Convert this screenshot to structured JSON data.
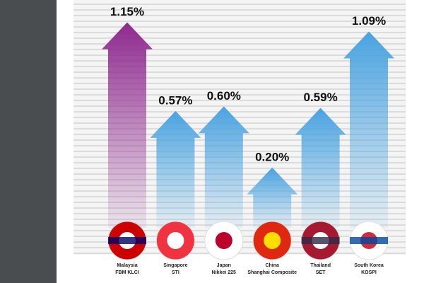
{
  "chart_data": {
    "type": "bar",
    "categories": [
      [
        "Malaysia",
        "FBM KLCI"
      ],
      [
        "Singapore",
        "STI"
      ],
      [
        "Japan",
        "Nikkei 225"
      ],
      [
        "China",
        "Shanghai Composite"
      ],
      [
        "Thailand",
        "SET"
      ],
      [
        "South Korea",
        "KOSPI"
      ]
    ],
    "values": [
      1.15,
      0.57,
      0.6,
      0.2,
      0.59,
      1.09
    ],
    "value_labels": [
      "1.15%",
      "0.57%",
      "0.60%",
      "0.20%",
      "0.59%",
      "1.09%"
    ],
    "colors": [
      "#8e2a8e",
      "#4aa3e0",
      "#4aa3e0",
      "#4aa3e0",
      "#4aa3e0",
      "#4aa3e0"
    ]
  }
}
